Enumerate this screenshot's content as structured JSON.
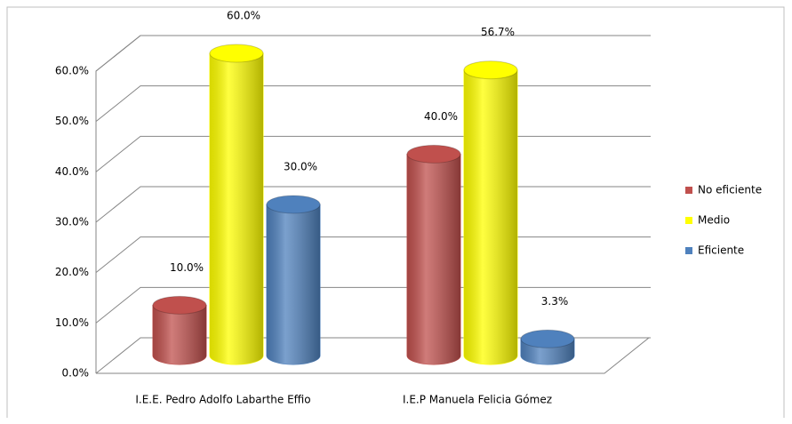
{
  "chart_data": {
    "type": "bar3d",
    "categories": [
      "I.E.E. Pedro Adolfo Labarthe Effio",
      "I.E.P Manuela Felicia Gómez"
    ],
    "series": [
      {
        "name": "No eficiente",
        "color": "#c0504d",
        "values": [
          10,
          40
        ],
        "value_labels": [
          "10.0%",
          "40.0%"
        ]
      },
      {
        "name": "Medio",
        "color": "#ffff00",
        "values": [
          60,
          56.7
        ],
        "value_labels": [
          "60.0%",
          "56.7%"
        ]
      },
      {
        "name": "Eficiente",
        "color": "#4f81bd",
        "values": [
          30,
          3.3
        ],
        "value_labels": [
          "30.0%",
          "3.3%"
        ]
      }
    ],
    "ylim": [
      0,
      60
    ],
    "yticks": [
      {
        "value": 0,
        "label": "0.0%"
      },
      {
        "value": 10,
        "label": "10.0%"
      },
      {
        "value": 20,
        "label": "20.0%"
      },
      {
        "value": 30,
        "label": "30.0%"
      },
      {
        "value": 40,
        "label": "40.0%"
      },
      {
        "value": 50,
        "label": "50.0%"
      },
      {
        "value": 60,
        "label": "60.0%"
      }
    ],
    "grid": true,
    "legend": "right"
  }
}
